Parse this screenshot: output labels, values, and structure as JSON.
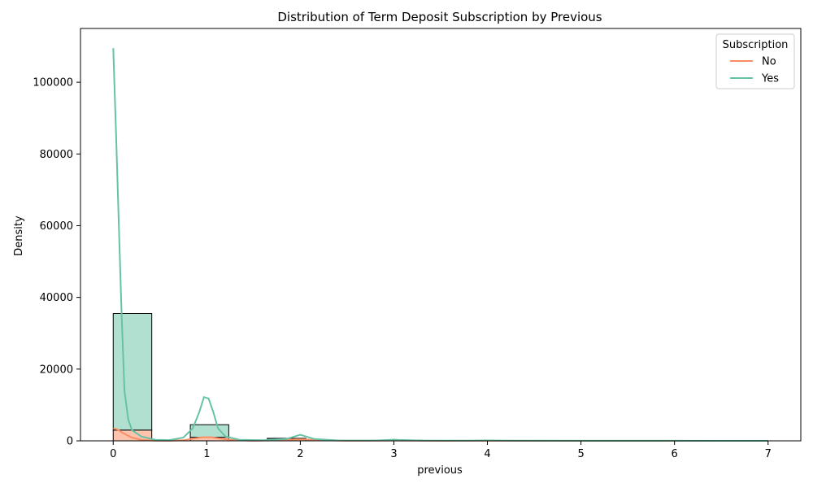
{
  "chart_data": {
    "type": "bar",
    "title": "Distribution of Term Deposit Subscription by Previous",
    "xlabel": "previous",
    "ylabel": "Density",
    "xlim": [
      -0.35,
      7.35
    ],
    "ylim": [
      0,
      115000
    ],
    "xticks": [
      0,
      1,
      2,
      3,
      4,
      5,
      6,
      7
    ],
    "yticks": [
      0,
      20000,
      40000,
      60000,
      80000,
      100000
    ],
    "grid": false,
    "stacked": true,
    "legend": {
      "title": "Subscription",
      "placement": "top-right"
    },
    "bins": [
      [
        0.0,
        0.412
      ],
      [
        0.412,
        0.824
      ],
      [
        0.824,
        1.235
      ],
      [
        1.235,
        1.647
      ],
      [
        1.647,
        2.059
      ],
      [
        2.059,
        2.471
      ],
      [
        2.471,
        2.882
      ],
      [
        2.882,
        3.294
      ],
      [
        3.294,
        3.706
      ],
      [
        3.706,
        4.118
      ],
      [
        4.118,
        4.529
      ],
      [
        4.529,
        4.941
      ],
      [
        4.941,
        5.353
      ],
      [
        5.353,
        5.765
      ],
      [
        5.765,
        6.176
      ],
      [
        6.176,
        6.588
      ],
      [
        6.588,
        7.0
      ]
    ],
    "series": [
      {
        "name": "No",
        "color": "#fc8d62",
        "fill": "#fcc4ad",
        "values": [
          3000,
          0,
          1000,
          0,
          400,
          0,
          0,
          100,
          0,
          30,
          0,
          0,
          10,
          0,
          5,
          0,
          2
        ]
      },
      {
        "name": "Yes",
        "color": "#66c2a5",
        "fill": "#b2e0d0",
        "values": [
          32500,
          0,
          3500,
          0,
          300,
          0,
          0,
          80,
          0,
          20,
          0,
          0,
          5,
          0,
          3,
          0,
          1
        ]
      }
    ],
    "kde": [
      {
        "name": "No",
        "points": [
          [
            0,
            3500
          ],
          [
            0.05,
            3100
          ],
          [
            0.1,
            2200
          ],
          [
            0.2,
            900
          ],
          [
            0.3,
            250
          ],
          [
            0.45,
            40
          ],
          [
            0.6,
            20
          ],
          [
            0.75,
            150
          ],
          [
            0.85,
            600
          ],
          [
            0.95,
            1000
          ],
          [
            1.05,
            1000
          ],
          [
            1.15,
            600
          ],
          [
            1.3,
            150
          ],
          [
            1.5,
            30
          ],
          [
            1.8,
            150
          ],
          [
            1.95,
            400
          ],
          [
            2.05,
            400
          ],
          [
            2.2,
            150
          ],
          [
            2.5,
            20
          ],
          [
            2.9,
            60
          ],
          [
            3.0,
            100
          ],
          [
            3.1,
            60
          ],
          [
            3.5,
            10
          ],
          [
            4.0,
            30
          ],
          [
            4.5,
            5
          ],
          [
            5.0,
            8
          ],
          [
            6.0,
            4
          ],
          [
            7.0,
            2
          ]
        ]
      },
      {
        "name": "Yes",
        "points": [
          [
            0,
            109500
          ],
          [
            0.03,
            86000
          ],
          [
            0.06,
            60000
          ],
          [
            0.09,
            35000
          ],
          [
            0.12,
            14000
          ],
          [
            0.16,
            6000
          ],
          [
            0.2,
            3000
          ],
          [
            0.3,
            1200
          ],
          [
            0.45,
            300
          ],
          [
            0.6,
            200
          ],
          [
            0.75,
            900
          ],
          [
            0.85,
            3500
          ],
          [
            0.92,
            8000
          ],
          [
            0.97,
            12200
          ],
          [
            1.02,
            11800
          ],
          [
            1.07,
            8000
          ],
          [
            1.12,
            3500
          ],
          [
            1.2,
            1200
          ],
          [
            1.35,
            300
          ],
          [
            1.6,
            150
          ],
          [
            1.85,
            500
          ],
          [
            1.95,
            1300
          ],
          [
            2.0,
            1700
          ],
          [
            2.05,
            1300
          ],
          [
            2.15,
            500
          ],
          [
            2.4,
            120
          ],
          [
            2.8,
            80
          ],
          [
            2.95,
            250
          ],
          [
            3.0,
            350
          ],
          [
            3.05,
            250
          ],
          [
            3.3,
            80
          ],
          [
            3.8,
            60
          ],
          [
            4.0,
            120
          ],
          [
            4.2,
            60
          ],
          [
            5.0,
            30
          ],
          [
            6.0,
            15
          ],
          [
            7.0,
            5
          ]
        ]
      }
    ]
  }
}
